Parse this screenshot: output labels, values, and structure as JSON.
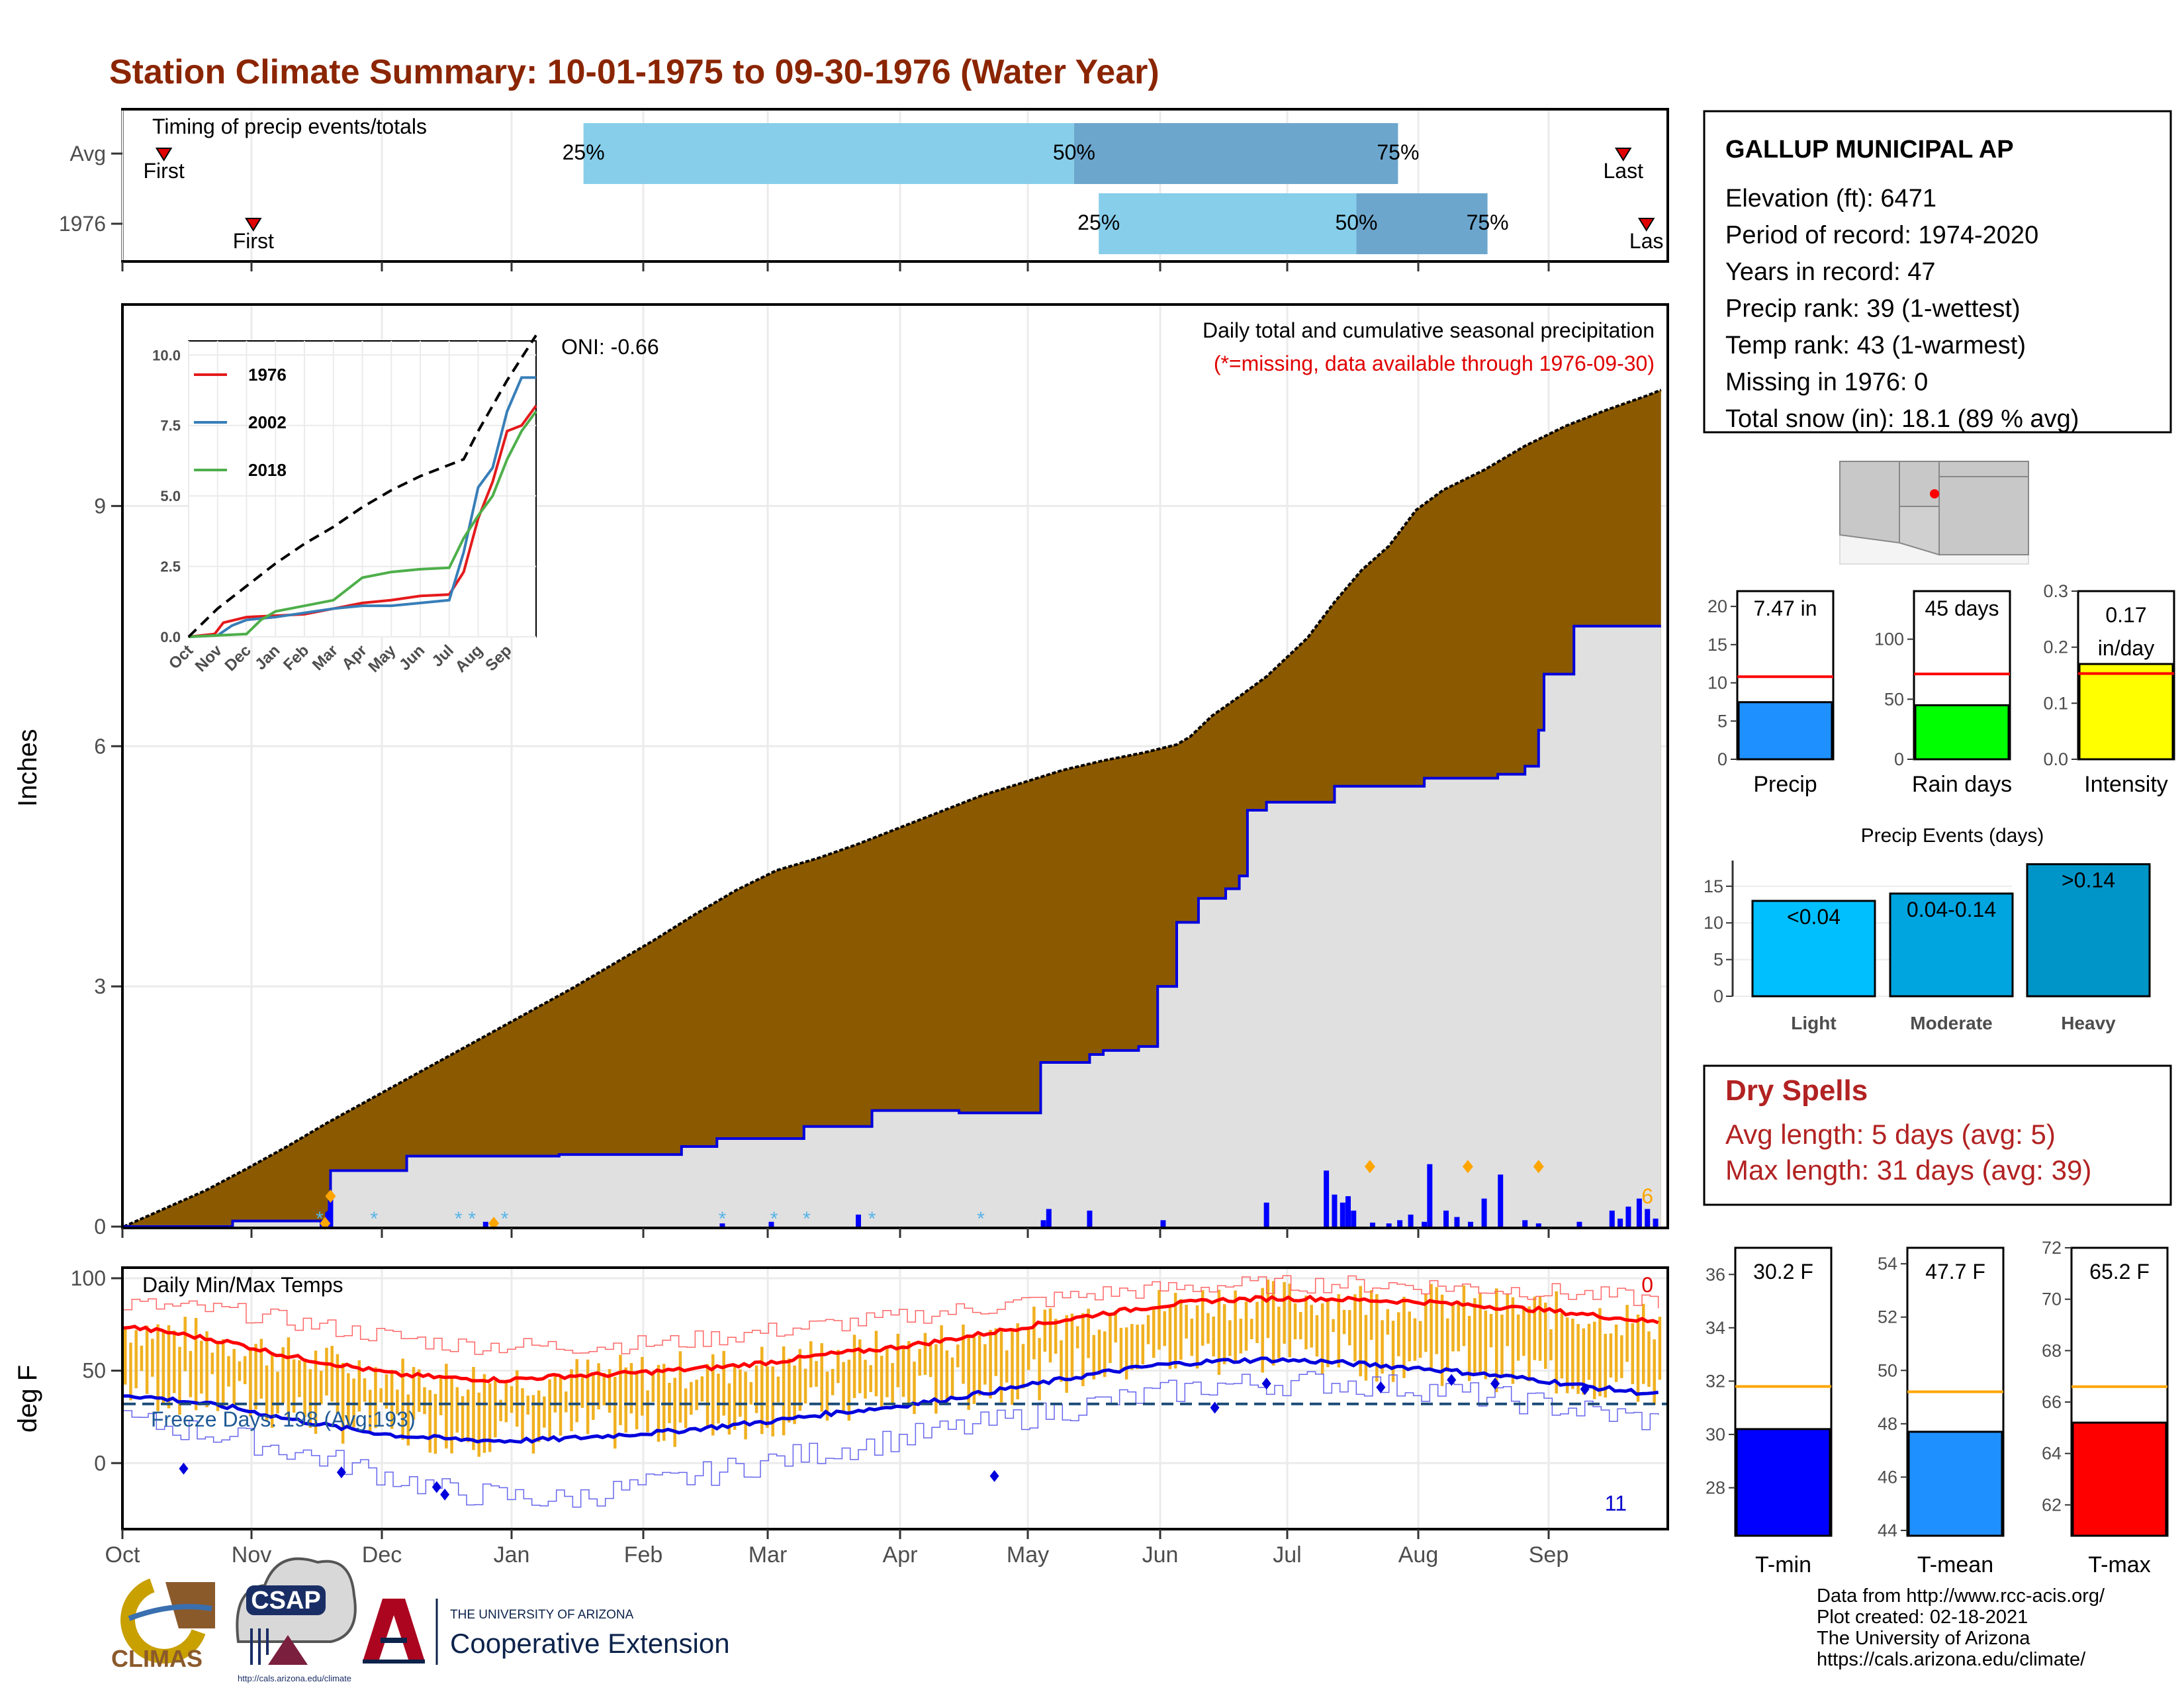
{
  "title": "Station Climate Summary: 10-01-1975 to 09-30-1976 (Water Year)",
  "timing": {
    "label": "Timing of precip events/totals",
    "rows": [
      {
        "name": "Avg",
        "first_label": "First",
        "last_label": "Last",
        "first": 0.026,
        "last": 0.972,
        "p25": 0.298,
        "p50": 0.616,
        "p75": 0.826
      },
      {
        "name": "1976",
        "first_label": "First",
        "last_label": "Las",
        "first": 0.084,
        "last": 0.987,
        "p25": 0.632,
        "p50": 0.799,
        "p75": 0.884
      }
    ],
    "pct_labels": [
      "25%",
      "50%",
      "75%"
    ]
  },
  "precip": {
    "ylabel": "Inches",
    "title": "Daily total and cumulative seasonal precipitation",
    "subtitle": "(*=missing, data available through 1976-09-30)",
    "oni": "ONI: -0.66",
    "count_label": "6",
    "yticks": [
      0,
      3,
      6,
      9
    ],
    "ylim": [
      0,
      11.5
    ],
    "avg_cum": [
      [
        0,
        0
      ],
      [
        10,
        0.15
      ],
      [
        20,
        0.3
      ],
      [
        30,
        0.45
      ],
      [
        45,
        0.72
      ],
      [
        60,
        1.0
      ],
      [
        75,
        1.3
      ],
      [
        90,
        1.58
      ],
      [
        105,
        1.86
      ],
      [
        120,
        2.14
      ],
      [
        135,
        2.42
      ],
      [
        150,
        2.7
      ],
      [
        165,
        2.98
      ],
      [
        180,
        3.28
      ],
      [
        195,
        3.58
      ],
      [
        210,
        3.9
      ],
      [
        225,
        4.2
      ],
      [
        240,
        4.45
      ],
      [
        255,
        4.6
      ],
      [
        270,
        4.78
      ],
      [
        285,
        4.98
      ],
      [
        300,
        5.18
      ],
      [
        315,
        5.38
      ],
      [
        330,
        5.54
      ],
      [
        345,
        5.7
      ],
      [
        360,
        5.82
      ],
      [
        375,
        5.92
      ],
      [
        387,
        6.02
      ],
      [
        392,
        6.12
      ],
      [
        400,
        6.38
      ],
      [
        410,
        6.62
      ],
      [
        420,
        6.87
      ],
      [
        435,
        7.35
      ],
      [
        445,
        7.8
      ],
      [
        455,
        8.2
      ],
      [
        465,
        8.5
      ],
      [
        475,
        8.95
      ],
      [
        485,
        9.2
      ],
      [
        500,
        9.45
      ],
      [
        515,
        9.75
      ],
      [
        530,
        10.0
      ],
      [
        545,
        10.2
      ],
      [
        560,
        10.38
      ],
      [
        565,
        10.45
      ]
    ],
    "obs_cum": [
      [
        0,
        0
      ],
      [
        40,
        0.07
      ],
      [
        74,
        0.07
      ],
      [
        75,
        0.18
      ],
      [
        76,
        0.7
      ],
      [
        104,
        0.88
      ],
      [
        160,
        0.9
      ],
      [
        205,
        1.0
      ],
      [
        218,
        1.1
      ],
      [
        250,
        1.25
      ],
      [
        275,
        1.45
      ],
      [
        307,
        1.42
      ],
      [
        337,
        2.05
      ],
      [
        355,
        2.15
      ],
      [
        360,
        2.2
      ],
      [
        373,
        2.25
      ],
      [
        380,
        3.0
      ],
      [
        387,
        3.8
      ],
      [
        395,
        4.1
      ],
      [
        405,
        4.22
      ],
      [
        410,
        4.38
      ],
      [
        413,
        5.2
      ],
      [
        420,
        5.3
      ],
      [
        445,
        5.5
      ],
      [
        478,
        5.6
      ],
      [
        505,
        5.65
      ],
      [
        515,
        5.75
      ],
      [
        520,
        6.2
      ],
      [
        522,
        6.9
      ],
      [
        533,
        7.5
      ],
      [
        565,
        7.5
      ]
    ],
    "daily_bars": [
      [
        73,
        0.06
      ],
      [
        75,
        0.18
      ],
      [
        76,
        0.35
      ],
      [
        133,
        0.06
      ],
      [
        220,
        0.04
      ],
      [
        238,
        0.06
      ],
      [
        270,
        0.15
      ],
      [
        338,
        0.08
      ],
      [
        340,
        0.22
      ],
      [
        355,
        0.2
      ],
      [
        382,
        0.08
      ],
      [
        420,
        0.3
      ],
      [
        442,
        0.7
      ],
      [
        445,
        0.4
      ],
      [
        448,
        0.3
      ],
      [
        450,
        0.38
      ],
      [
        452,
        0.2
      ],
      [
        459,
        0.05
      ],
      [
        465,
        0.04
      ],
      [
        469,
        0.08
      ],
      [
        473,
        0.15
      ],
      [
        478,
        0.06
      ],
      [
        480,
        0.78
      ],
      [
        486,
        0.2
      ],
      [
        490,
        0.12
      ],
      [
        495,
        0.06
      ],
      [
        500,
        0.35
      ],
      [
        506,
        0.65
      ],
      [
        515,
        0.08
      ],
      [
        520,
        0.04
      ],
      [
        535,
        0.06
      ],
      [
        547,
        0.2
      ],
      [
        550,
        0.1
      ],
      [
        553,
        0.25
      ],
      [
        557,
        0.35
      ],
      [
        560,
        0.22
      ],
      [
        563,
        0.1
      ]
    ],
    "markers": [
      [
        74,
        0.04
      ],
      [
        76,
        0.38
      ],
      [
        136,
        0.04
      ],
      [
        458,
        0.75
      ],
      [
        494,
        0.75
      ],
      [
        520,
        0.75
      ]
    ],
    "missing": [
      [
        72,
        0
      ],
      [
        92,
        0
      ],
      [
        123,
        0
      ],
      [
        128,
        0
      ],
      [
        140,
        0
      ],
      [
        220,
        0
      ],
      [
        239,
        0
      ],
      [
        251,
        0
      ],
      [
        275,
        0
      ],
      [
        315,
        0
      ]
    ],
    "inset": {
      "yticks": [
        "0.0",
        "2.5",
        "5.0",
        "7.5",
        "10.0"
      ],
      "ylim": [
        0,
        10.5
      ],
      "months": [
        "Oct",
        "Nov",
        "Dec",
        "Jan",
        "Feb",
        "Mar",
        "Apr",
        "May",
        "Jun",
        "Jul",
        "Aug",
        "Sep"
      ],
      "series": [
        {
          "name": "1976",
          "color": "#e41a1c",
          "values": [
            [
              0,
              0
            ],
            [
              0.9,
              0.1
            ],
            [
              1.2,
              0.5
            ],
            [
              2.0,
              0.7
            ],
            [
              3.0,
              0.75
            ],
            [
              4.0,
              0.8
            ],
            [
              5.0,
              1.0
            ],
            [
              6.0,
              1.2
            ],
            [
              7.0,
              1.3
            ],
            [
              8.0,
              1.45
            ],
            [
              9.0,
              1.5
            ],
            [
              9.5,
              2.3
            ],
            [
              10.0,
              4.2
            ],
            [
              10.5,
              5.5
            ],
            [
              11.0,
              7.3
            ],
            [
              11.5,
              7.5
            ],
            [
              12.0,
              8.2
            ]
          ]
        },
        {
          "name": "2002",
          "color": "#377eb8",
          "values": [
            [
              0,
              0
            ],
            [
              1.0,
              0.05
            ],
            [
              1.5,
              0.4
            ],
            [
              2.0,
              0.6
            ],
            [
              3.0,
              0.7
            ],
            [
              4.0,
              0.85
            ],
            [
              5.0,
              1.0
            ],
            [
              6.0,
              1.1
            ],
            [
              7.0,
              1.1
            ],
            [
              8.0,
              1.2
            ],
            [
              9.0,
              1.3
            ],
            [
              9.5,
              3.0
            ],
            [
              10.0,
              5.3
            ],
            [
              10.5,
              6.0
            ],
            [
              11.0,
              8.0
            ],
            [
              11.5,
              9.2
            ],
            [
              12.0,
              9.2
            ]
          ]
        },
        {
          "name": "2018",
          "color": "#4daf4a",
          "values": [
            [
              0,
              0
            ],
            [
              1.0,
              0.05
            ],
            [
              2.0,
              0.1
            ],
            [
              2.5,
              0.6
            ],
            [
              3.0,
              0.9
            ],
            [
              4.0,
              1.1
            ],
            [
              5.0,
              1.3
            ],
            [
              6.0,
              2.1
            ],
            [
              7.0,
              2.3
            ],
            [
              8.0,
              2.4
            ],
            [
              9.0,
              2.45
            ],
            [
              9.5,
              3.5
            ],
            [
              10.0,
              4.3
            ],
            [
              10.5,
              5.0
            ],
            [
              11.0,
              6.3
            ],
            [
              11.5,
              7.3
            ],
            [
              12.0,
              8.0
            ]
          ]
        }
      ],
      "avg": [
        [
          0,
          0
        ],
        [
          1,
          1.0
        ],
        [
          2,
          1.8
        ],
        [
          3,
          2.6
        ],
        [
          4,
          3.3
        ],
        [
          5,
          3.9
        ],
        [
          6,
          4.6
        ],
        [
          7,
          5.2
        ],
        [
          8,
          5.7
        ],
        [
          9,
          6.1
        ],
        [
          9.5,
          6.3
        ],
        [
          10,
          7.3
        ],
        [
          10.5,
          8.2
        ],
        [
          11,
          9.1
        ],
        [
          11.5,
          9.9
        ],
        [
          12,
          10.7
        ]
      ]
    }
  },
  "temps": {
    "ylabel": "deg F",
    "title": "Daily Min/Max Temps",
    "freeze_label": "Freeze Days: 198 (Avg:193)",
    "count_top": "0",
    "count_bottom": "11",
    "yticks": [
      0,
      50,
      100
    ],
    "ylim": [
      -35,
      105
    ],
    "freeze_line": 32,
    "avg_max": [
      [
        0,
        74
      ],
      [
        20,
        70
      ],
      [
        40,
        65
      ],
      [
        60,
        58
      ],
      [
        80,
        53
      ],
      [
        100,
        48
      ],
      [
        120,
        46
      ],
      [
        140,
        45
      ],
      [
        160,
        47
      ],
      [
        180,
        48
      ],
      [
        200,
        50
      ],
      [
        220,
        52
      ],
      [
        240,
        55
      ],
      [
        260,
        59
      ],
      [
        280,
        62
      ],
      [
        300,
        66
      ],
      [
        320,
        71
      ],
      [
        340,
        76
      ],
      [
        360,
        81
      ],
      [
        380,
        85
      ],
      [
        400,
        88
      ],
      [
        420,
        89
      ],
      [
        440,
        89
      ],
      [
        460,
        88
      ],
      [
        480,
        87
      ],
      [
        500,
        85
      ],
      [
        520,
        83
      ],
      [
        540,
        80
      ],
      [
        565,
        76
      ]
    ],
    "avg_min": [
      [
        0,
        37
      ],
      [
        20,
        34
      ],
      [
        40,
        30
      ],
      [
        60,
        24
      ],
      [
        80,
        19
      ],
      [
        100,
        15
      ],
      [
        120,
        13
      ],
      [
        140,
        12
      ],
      [
        160,
        13
      ],
      [
        180,
        15
      ],
      [
        200,
        17
      ],
      [
        220,
        20
      ],
      [
        240,
        23
      ],
      [
        260,
        27
      ],
      [
        280,
        30
      ],
      [
        300,
        34
      ],
      [
        320,
        39
      ],
      [
        340,
        44
      ],
      [
        360,
        49
      ],
      [
        380,
        53
      ],
      [
        400,
        55
      ],
      [
        420,
        56
      ],
      [
        440,
        55
      ],
      [
        460,
        53
      ],
      [
        480,
        51
      ],
      [
        500,
        48
      ],
      [
        520,
        45
      ],
      [
        540,
        41
      ],
      [
        565,
        37
      ]
    ],
    "rec_max": [
      [
        0,
        86
      ],
      [
        40,
        82
      ],
      [
        80,
        72
      ],
      [
        120,
        64
      ],
      [
        160,
        63
      ],
      [
        200,
        65
      ],
      [
        240,
        72
      ],
      [
        280,
        78
      ],
      [
        320,
        85
      ],
      [
        360,
        92
      ],
      [
        400,
        96
      ],
      [
        440,
        97
      ],
      [
        480,
        96
      ],
      [
        520,
        93
      ],
      [
        565,
        88
      ]
    ],
    "rec_min": [
      [
        0,
        23
      ],
      [
        40,
        14
      ],
      [
        80,
        0
      ],
      [
        120,
        -16
      ],
      [
        160,
        -20
      ],
      [
        200,
        -10
      ],
      [
        240,
        2
      ],
      [
        280,
        12
      ],
      [
        320,
        22
      ],
      [
        360,
        33
      ],
      [
        400,
        42
      ],
      [
        440,
        44
      ],
      [
        480,
        40
      ],
      [
        520,
        32
      ],
      [
        565,
        22
      ]
    ],
    "obs_dots": [
      [
        22,
        -3
      ],
      [
        80,
        -5
      ],
      [
        115,
        -13
      ],
      [
        118,
        -17
      ],
      [
        320,
        -7
      ],
      [
        401,
        30
      ],
      [
        420,
        43
      ],
      [
        462,
        41
      ],
      [
        488,
        45
      ],
      [
        504,
        43
      ],
      [
        537,
        40
      ]
    ]
  },
  "xaxis": {
    "months": [
      "Oct",
      "Nov",
      "Dec",
      "Jan",
      "Feb",
      "Mar",
      "Apr",
      "May",
      "Jun",
      "Jul",
      "Aug",
      "Sep"
    ]
  },
  "station": {
    "name": "GALLUP MUNICIPAL AP",
    "lines": [
      "Elevation (ft): 6471",
      "Period of record: 1974-2020",
      "Years in record: 47",
      "Precip rank: 39 (1-wettest)",
      "Temp rank: 43 (1-warmest)",
      "Missing in 1976: 0",
      "Total snow (in): 18.1 (89 % avg)"
    ]
  },
  "summary_bars": [
    {
      "label": "Precip",
      "value_label": "7.47 in",
      "value": 7.47,
      "avg": 10.8,
      "ymax": 22,
      "yticks": [
        0,
        5,
        10,
        15,
        20
      ],
      "color": "#1e90ff"
    },
    {
      "label": "Rain days",
      "value_label": "45 days",
      "value": 45,
      "avg": 71,
      "ymax": 140,
      "yticks": [
        0,
        50,
        100
      ],
      "color": "#00ff00"
    },
    {
      "label": "Intensity",
      "value_label": "0.17 in/day",
      "value": 0.17,
      "avg": 0.153,
      "ymax": 0.3,
      "yticks": [
        "0.0",
        "0.1",
        "0.2",
        "0.3"
      ],
      "color": "#ffff00"
    }
  ],
  "events": {
    "title": "Precip Events (days)",
    "yticks": [
      0,
      5,
      10,
      15
    ],
    "ymax": 18.5,
    "bars": [
      {
        "label": "Light",
        "value_label": "<0.04",
        "value": 13,
        "color": "#00bfff"
      },
      {
        "label": "Moderate",
        "value_label": "0.04-0.14",
        "value": 14,
        "color": "#00a5e0"
      },
      {
        "label": "Heavy",
        "value_label": ">0.14",
        "value": 18,
        "color": "#0095c8"
      }
    ]
  },
  "dry_spells": {
    "title": "Dry Spells",
    "avg": "Avg length: 5 days (avg: 5)",
    "max": "Max length: 31 days (avg: 39)"
  },
  "temp_bars": [
    {
      "label": "T-min",
      "value_label": "30.2 F",
      "value": 30.2,
      "avg": 31.8,
      "ymin": 26.2,
      "ymax": 37.0,
      "yticks": [
        28,
        30,
        32,
        34,
        36
      ],
      "color": "#0000ff"
    },
    {
      "label": "T-mean",
      "value_label": "47.7 F",
      "value": 47.7,
      "avg": 49.2,
      "ymin": 43.8,
      "ymax": 54.6,
      "yticks": [
        44,
        46,
        48,
        50,
        52,
        54
      ],
      "color": "#1e90ff"
    },
    {
      "label": "T-max",
      "value_label": "65.2 F",
      "value": 65.2,
      "avg": 66.6,
      "ymin": 60.8,
      "ymax": 72,
      "yticks": [
        62,
        64,
        66,
        68,
        70,
        72
      ],
      "color": "#ff0000"
    }
  ],
  "footer": [
    "Data from http://www.rcc-acis.org/",
    "Plot created: 02-18-2021",
    "The University of Arizona",
    "https://cals.arizona.edu/climate/"
  ],
  "logos": {
    "climas": "CLIMAS",
    "csap": "CSAP",
    "csap_url": "http://cals.arizona.edu/climate",
    "ua_small": "THE UNIVERSITY OF ARIZONA",
    "ua_big": "Cooperative Extension"
  }
}
